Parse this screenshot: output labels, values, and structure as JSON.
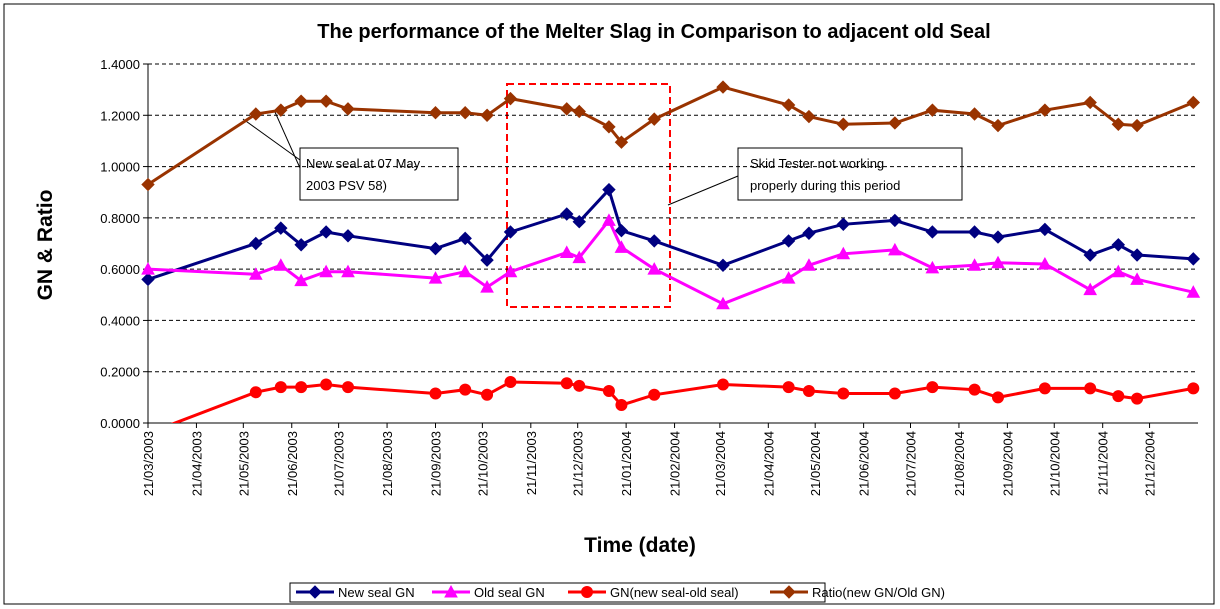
{
  "chart_data": {
    "type": "line",
    "title": "The performance of the Melter Slag in Comparison to adjacent old Seal",
    "x_label": "Time (date)",
    "y_label": "GN & Ratio",
    "x": [
      "21/03/2003",
      "29/05/2003",
      "14/06/2003",
      "27/06/2003",
      "13/07/2003",
      "27/07/2003",
      "21/09/2003",
      "10/10/2003",
      "24/10/2003",
      "08/11/2003",
      "14/12/2003",
      "22/12/2003",
      "10/01/2004",
      "18/01/2004",
      "08/02/2004",
      "23/03/2004",
      "04/05/2004",
      "17/05/2004",
      "08/06/2004",
      "11/07/2004",
      "04/08/2004",
      "31/08/2004",
      "15/09/2004",
      "15/10/2004",
      "13/11/2004",
      "01/12/2004",
      "13/12/2004",
      "18/01/2005"
    ],
    "series": [
      {
        "name": "New seal GN",
        "color": "#000080",
        "marker": "diamond",
        "values": [
          0.56,
          0.7,
          0.76,
          0.695,
          0.745,
          0.73,
          0.68,
          0.72,
          0.635,
          0.745,
          0.815,
          0.785,
          0.91,
          0.75,
          0.71,
          0.615,
          0.71,
          0.74,
          0.775,
          0.79,
          0.745,
          0.745,
          0.725,
          0.755,
          0.655,
          0.695,
          0.655,
          0.64
        ]
      },
      {
        "name": "Old seal GN",
        "color": "#ff00ff",
        "marker": "triangle",
        "values": [
          0.6,
          0.58,
          0.615,
          0.555,
          0.59,
          0.59,
          0.565,
          0.59,
          0.53,
          0.59,
          0.665,
          0.645,
          0.79,
          0.685,
          0.6,
          0.465,
          0.565,
          0.615,
          0.66,
          0.675,
          0.605,
          0.615,
          0.625,
          0.62,
          0.52,
          0.59,
          0.56,
          0.51
        ]
      },
      {
        "name": "GN(new seal-old seal)",
        "color": "#ff0000",
        "marker": "circle",
        "values": [
          -0.04,
          0.12,
          0.14,
          0.14,
          0.15,
          0.14,
          0.115,
          0.13,
          0.11,
          0.16,
          0.155,
          0.145,
          0.125,
          0.07,
          0.11,
          0.15,
          0.14,
          0.125,
          0.115,
          0.115,
          0.14,
          0.13,
          0.1,
          0.135,
          0.135,
          0.105,
          0.095,
          0.135
        ]
      },
      {
        "name": "Ratio(new  GN/Old GN)",
        "color": "#993300",
        "marker": "diamond",
        "values": [
          0.93,
          1.205,
          1.22,
          1.255,
          1.255,
          1.225,
          1.21,
          1.21,
          1.2,
          1.265,
          1.225,
          1.215,
          1.155,
          1.095,
          1.185,
          1.31,
          1.24,
          1.195,
          1.165,
          1.17,
          1.22,
          1.205,
          1.16,
          1.22,
          1.25,
          1.165,
          1.16,
          1.25
        ]
      }
    ],
    "xlim": [
      "21/03/2003",
      "21/01/2005"
    ],
    "xticks": [
      "21/03/2003",
      "21/04/2003",
      "21/05/2003",
      "21/06/2003",
      "21/07/2003",
      "21/08/2003",
      "21/09/2003",
      "21/10/2003",
      "21/11/2003",
      "21/12/2003",
      "21/01/2004",
      "21/02/2004",
      "21/03/2004",
      "21/04/2004",
      "21/05/2004",
      "21/06/2004",
      "21/07/2004",
      "21/08/2004",
      "21/09/2004",
      "21/10/2004",
      "21/11/2004",
      "21/12/2004"
    ],
    "ylim": [
      0,
      1.4
    ],
    "yticks": [
      {
        "value": 0,
        "label": "0.0000"
      },
      {
        "value": 0.2,
        "label": "0.2000"
      },
      {
        "value": 0.4,
        "label": "0.4000"
      },
      {
        "value": 0.6,
        "label": "0.6000"
      },
      {
        "value": 0.8,
        "label": "0.8000"
      },
      {
        "value": 1.0,
        "label": "1.0000"
      },
      {
        "value": 1.2,
        "label": "1.2000"
      },
      {
        "value": 1.4,
        "label": "1.4000"
      }
    ],
    "grid": true,
    "legend": "bottom",
    "annotations": [
      {
        "text": [
          "New seal at 07 May",
          "2003 PSV 58)"
        ]
      },
      {
        "text": [
          "Skid  Tester not working",
          "properly during this period"
        ]
      }
    ]
  }
}
